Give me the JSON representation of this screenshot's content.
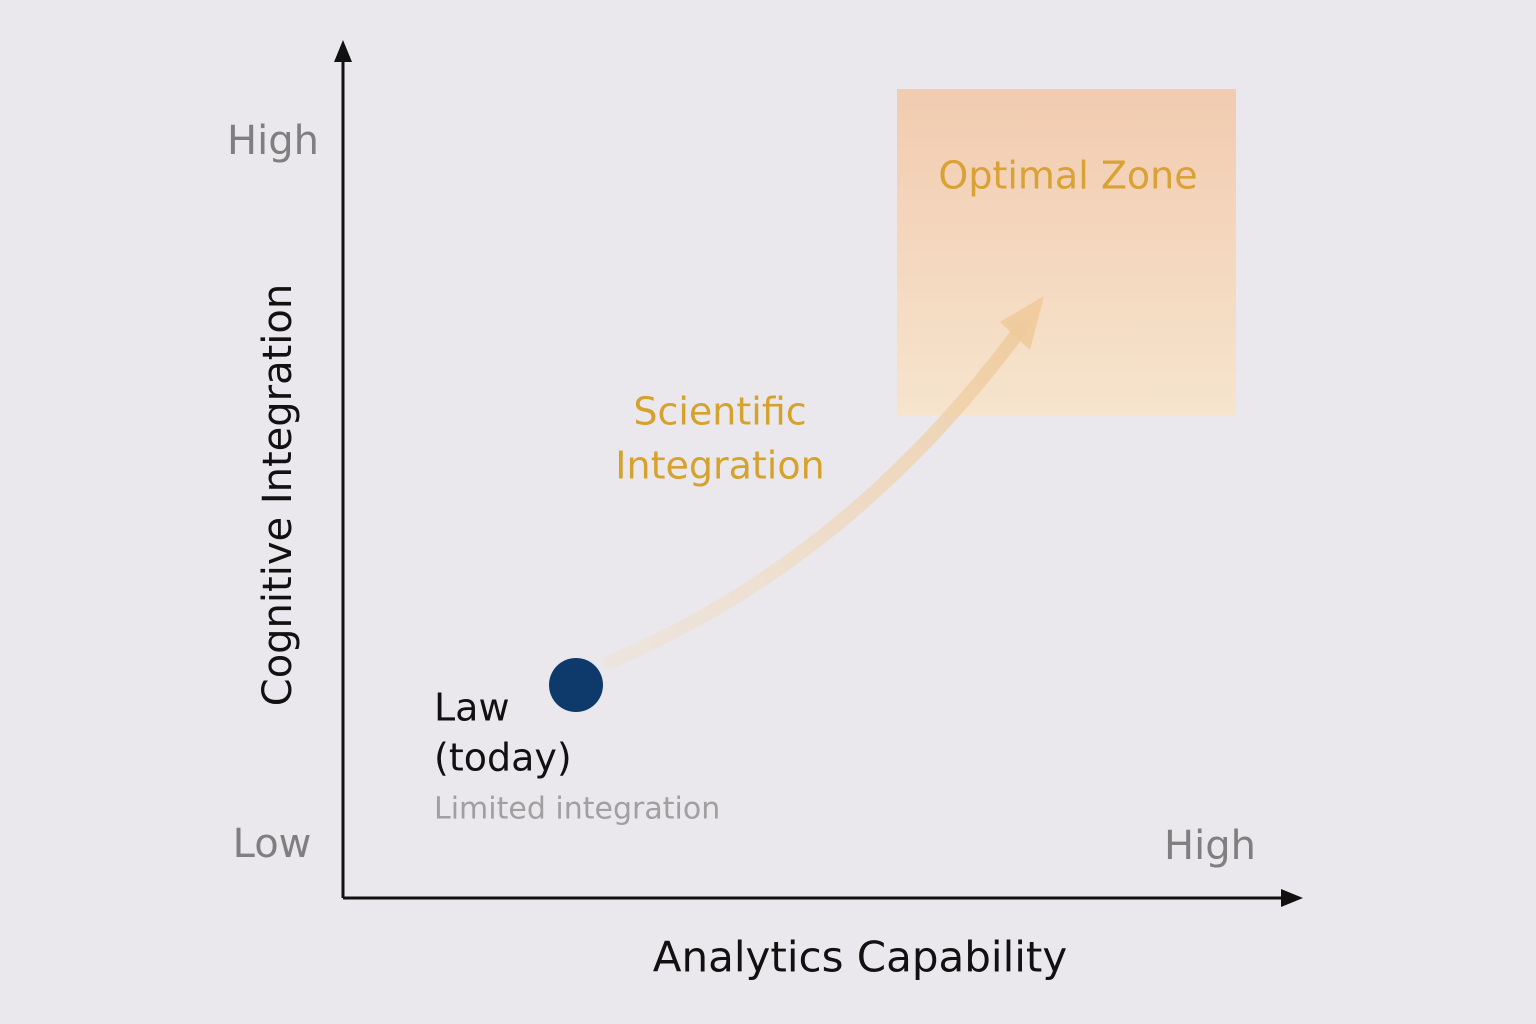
{
  "y_axis": {
    "label": "Cognitive Integration",
    "high": "High",
    "low": "Low"
  },
  "x_axis": {
    "label": "Analytics Capability",
    "high": "High"
  },
  "zone": {
    "label": "Optimal Zone"
  },
  "arrow": {
    "label_lines": [
      "Scientific",
      "Integration"
    ]
  },
  "point": {
    "label_lines": [
      "Law",
      "(today)"
    ],
    "note": "Limited integration"
  }
}
